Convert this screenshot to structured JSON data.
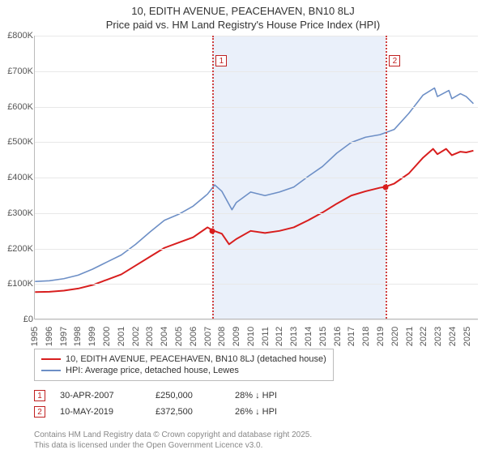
{
  "title": "10, EDITH AVENUE, PEACEHAVEN, BN10 8LJ",
  "subtitle": "Price paid vs. HM Land Registry's House Price Index (HPI)",
  "chart": {
    "type": "line",
    "background_color": "#ffffff",
    "grid_color": "#e8e8e8",
    "axis_color": "#bbbbbb",
    "shade_color": "#eaf0fa",
    "xlim": [
      1995,
      2025.8
    ],
    "ylim": [
      0,
      800000
    ],
    "ytick_step": 100000,
    "yticks": [
      "£0",
      "£100K",
      "£200K",
      "£300K",
      "£400K",
      "£500K",
      "£600K",
      "£700K",
      "£800K"
    ],
    "xticks": [
      1995,
      1996,
      1997,
      1998,
      1999,
      2000,
      2001,
      2002,
      2003,
      2004,
      2005,
      2006,
      2007,
      2008,
      2009,
      2010,
      2011,
      2012,
      2013,
      2014,
      2015,
      2016,
      2017,
      2018,
      2019,
      2020,
      2021,
      2022,
      2023,
      2024,
      2025
    ],
    "series": [
      {
        "name": "10, EDITH AVENUE, PEACEHAVEN, BN10 8LJ (detached house)",
        "color": "#d81e1e",
        "line_width": 2,
        "data": [
          [
            1995,
            75000
          ],
          [
            1996,
            76000
          ],
          [
            1997,
            79000
          ],
          [
            1998,
            85000
          ],
          [
            1999,
            95000
          ],
          [
            2000,
            110000
          ],
          [
            2001,
            125000
          ],
          [
            2002,
            150000
          ],
          [
            2003,
            175000
          ],
          [
            2004,
            200000
          ],
          [
            2005,
            215000
          ],
          [
            2006,
            230000
          ],
          [
            2007,
            258000
          ],
          [
            2007.33,
            250000
          ],
          [
            2008,
            240000
          ],
          [
            2008.5,
            210000
          ],
          [
            2009,
            225000
          ],
          [
            2010,
            248000
          ],
          [
            2011,
            242000
          ],
          [
            2012,
            248000
          ],
          [
            2013,
            258000
          ],
          [
            2014,
            278000
          ],
          [
            2015,
            300000
          ],
          [
            2016,
            325000
          ],
          [
            2017,
            348000
          ],
          [
            2018,
            360000
          ],
          [
            2019,
            370000
          ],
          [
            2019.36,
            372500
          ],
          [
            2020,
            382000
          ],
          [
            2021,
            410000
          ],
          [
            2022,
            455000
          ],
          [
            2022.7,
            480000
          ],
          [
            2023,
            465000
          ],
          [
            2023.6,
            480000
          ],
          [
            2024,
            462000
          ],
          [
            2024.6,
            472000
          ],
          [
            2025,
            470000
          ],
          [
            2025.5,
            475000
          ]
        ]
      },
      {
        "name": "HPI: Average price, detached house, Lewes",
        "color": "#6d8fc6",
        "line_width": 1.6,
        "data": [
          [
            1995,
            105000
          ],
          [
            1996,
            107000
          ],
          [
            1997,
            113000
          ],
          [
            1998,
            123000
          ],
          [
            1999,
            140000
          ],
          [
            2000,
            160000
          ],
          [
            2001,
            180000
          ],
          [
            2002,
            210000
          ],
          [
            2003,
            245000
          ],
          [
            2004,
            278000
          ],
          [
            2005,
            295000
          ],
          [
            2006,
            318000
          ],
          [
            2007,
            352000
          ],
          [
            2007.5,
            378000
          ],
          [
            2008,
            360000
          ],
          [
            2008.7,
            308000
          ],
          [
            2009,
            328000
          ],
          [
            2010,
            358000
          ],
          [
            2011,
            348000
          ],
          [
            2012,
            358000
          ],
          [
            2013,
            372000
          ],
          [
            2014,
            402000
          ],
          [
            2015,
            430000
          ],
          [
            2016,
            468000
          ],
          [
            2017,
            498000
          ],
          [
            2018,
            513000
          ],
          [
            2019,
            520000
          ],
          [
            2020,
            535000
          ],
          [
            2021,
            580000
          ],
          [
            2022,
            632000
          ],
          [
            2022.8,
            652000
          ],
          [
            2023,
            628000
          ],
          [
            2023.8,
            645000
          ],
          [
            2024,
            622000
          ],
          [
            2024.6,
            636000
          ],
          [
            2025,
            628000
          ],
          [
            2025.5,
            608000
          ]
        ]
      }
    ],
    "shade_range": [
      2007.33,
      2019.36
    ],
    "markers": [
      {
        "label": "1",
        "x": 2007.33,
        "y": 250000,
        "box_y": 745000,
        "dot_color": "#d81e1e"
      },
      {
        "label": "2",
        "x": 2019.36,
        "y": 372500,
        "box_y": 745000,
        "dot_color": "#d81e1e"
      }
    ],
    "vline_color": "#d04040"
  },
  "legend": {
    "border_color": "#bbbbbb",
    "fontsize": 11
  },
  "data_points": [
    {
      "marker": "1",
      "date": "30-APR-2007",
      "price": "£250,000",
      "delta": "28% ↓ HPI"
    },
    {
      "marker": "2",
      "date": "10-MAY-2019",
      "price": "£372,500",
      "delta": "26% ↓ HPI"
    }
  ],
  "footer": {
    "line1": "Contains HM Land Registry data © Crown copyright and database right 2025.",
    "line2": "This data is licensed under the Open Government Licence v3.0."
  }
}
